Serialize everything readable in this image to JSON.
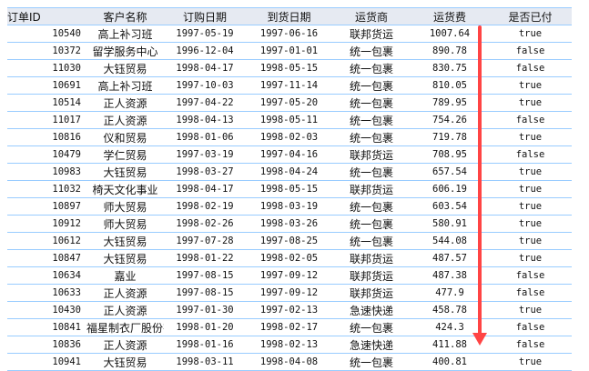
{
  "columns": [
    "订单ID",
    "客户名称",
    "订购日期",
    "到货日期",
    "运货商",
    "运货费",
    "是否已付"
  ],
  "rows": [
    [
      "10540",
      "高上补习班",
      "1997-05-19",
      "1997-06-16",
      "联邦货运",
      "1007.64",
      "true"
    ],
    [
      "10372",
      "留学服务中心",
      "1996-12-04",
      "1997-01-01",
      "统一包裹",
      "890.78",
      "false"
    ],
    [
      "11030",
      "大钰贸易",
      "1998-04-17",
      "1998-05-15",
      "统一包裹",
      "830.75",
      "false"
    ],
    [
      "10691",
      "高上补习班",
      "1997-10-03",
      "1997-11-14",
      "统一包裹",
      "810.05",
      "true"
    ],
    [
      "10514",
      "正人资源",
      "1997-04-22",
      "1997-05-20",
      "统一包裹",
      "789.95",
      "true"
    ],
    [
      "11017",
      "正人资源",
      "1998-04-13",
      "1998-05-11",
      "统一包裹",
      "754.26",
      "false"
    ],
    [
      "10816",
      "仪和贸易",
      "1998-01-06",
      "1998-02-03",
      "统一包裹",
      "719.78",
      "true"
    ],
    [
      "10479",
      "学仁贸易",
      "1997-03-19",
      "1997-04-16",
      "联邦货运",
      "708.95",
      "false"
    ],
    [
      "10983",
      "大钰贸易",
      "1998-03-27",
      "1998-04-24",
      "统一包裹",
      "657.54",
      "true"
    ],
    [
      "11032",
      "椅天文化事业",
      "1998-04-17",
      "1998-05-15",
      "联邦货运",
      "606.19",
      "true"
    ],
    [
      "10897",
      "师大贸易",
      "1998-02-19",
      "1998-03-19",
      "统一包裹",
      "603.54",
      "true"
    ],
    [
      "10912",
      "师大贸易",
      "1998-02-26",
      "1998-03-26",
      "统一包裹",
      "580.91",
      "true"
    ],
    [
      "10612",
      "大钰贸易",
      "1997-07-28",
      "1997-08-25",
      "统一包裹",
      "544.08",
      "true"
    ],
    [
      "10847",
      "大钰贸易",
      "1998-01-22",
      "1998-02-05",
      "联邦货运",
      "487.57",
      "true"
    ],
    [
      "10634",
      "嘉业",
      "1997-08-15",
      "1997-09-12",
      "联邦货运",
      "487.38",
      "false"
    ],
    [
      "10633",
      "正人资源",
      "1997-08-15",
      "1997-09-12",
      "联邦货运",
      "477.9",
      "false"
    ],
    [
      "10430",
      "正人资源",
      "1997-01-30",
      "1997-02-13",
      "急速快递",
      "458.78",
      "true"
    ],
    [
      "10841",
      "福星制衣厂股份有限公司",
      "1998-01-20",
      "1998-02-17",
      "统一包裹",
      "424.3",
      "false"
    ],
    [
      "10836",
      "正人资源",
      "1998-01-16",
      "1998-02-13",
      "急速快递",
      "411.88",
      "false"
    ],
    [
      "10941",
      "大钰贸易",
      "1998-03-11",
      "1998-04-08",
      "统一包裹",
      "400.81",
      "true"
    ]
  ],
  "annotation": {
    "type": "arrow-down",
    "color": "#ff4444"
  }
}
